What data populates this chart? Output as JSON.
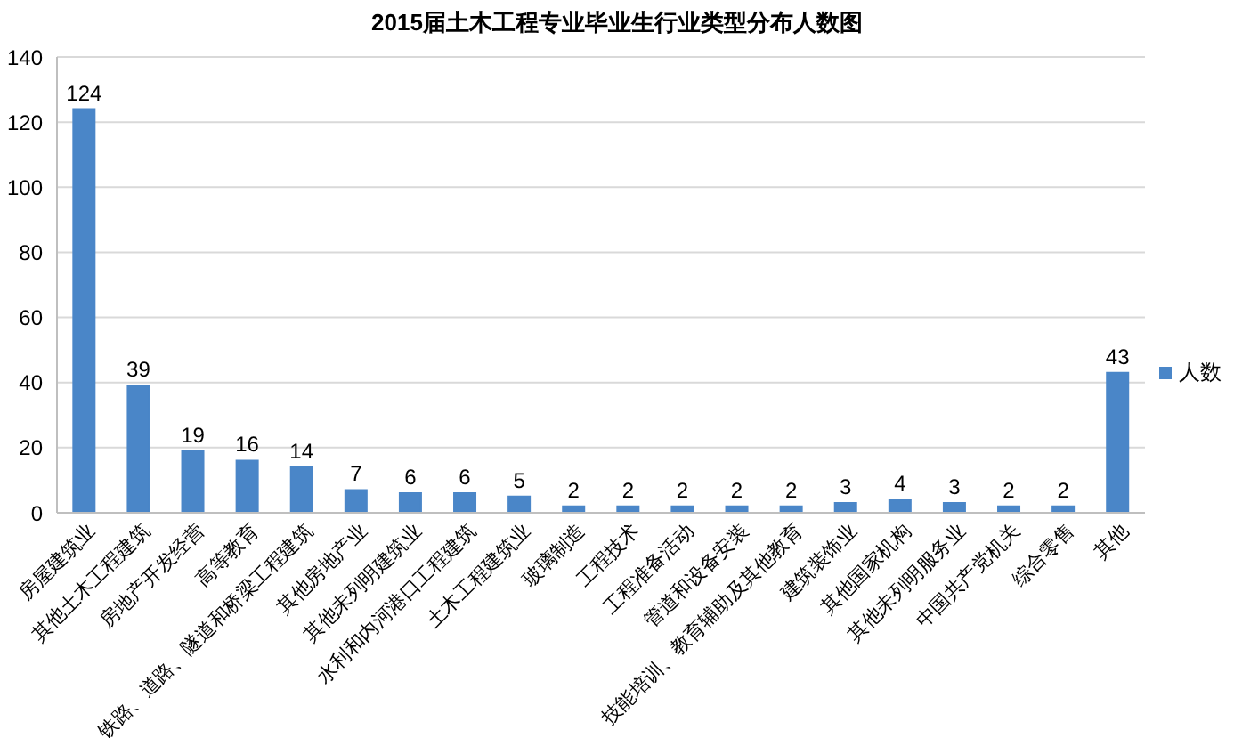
{
  "chart_data": {
    "type": "bar",
    "title": "2015届土木工程专业毕业生行业类型分布人数图",
    "categories": [
      "房屋建筑业",
      "其他土木工程建筑",
      "房地产开发经营",
      "高等教育",
      "铁路、道路、隧道和桥梁工程建筑",
      "其他房地产业",
      "其他未列明建筑业",
      "水利和内河港口工程建筑",
      "土木工程建筑业",
      "玻璃制造",
      "工程技术",
      "工程准备活动",
      "管道和设备安装",
      "技能培训、教育辅助及其他教育",
      "建筑装饰业",
      "其他国家机构",
      "其他未列明服务业",
      "中国共产党机关",
      "综合零售",
      "其他"
    ],
    "series": [
      {
        "name": "人数",
        "color": "#4a86c8",
        "values": [
          124,
          39,
          19,
          16,
          14,
          7,
          6,
          6,
          5,
          2,
          2,
          2,
          2,
          2,
          3,
          4,
          3,
          2,
          2,
          43
        ]
      }
    ],
    "ylim": [
      0,
      140
    ],
    "yticks": [
      0,
      20,
      40,
      60,
      80,
      100,
      120,
      140
    ],
    "grid": "y",
    "legend": "right",
    "data_labels": true
  }
}
